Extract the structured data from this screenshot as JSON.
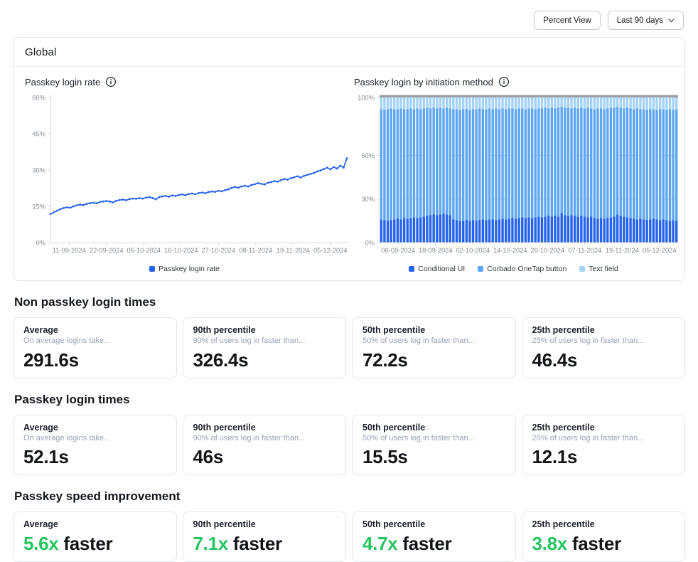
{
  "toolbar": {
    "percent_view_label": "Percent View",
    "range_label": "Last 90 days"
  },
  "icons": {
    "info_icon": "i-in-circle",
    "chevron_down_icon": "chevron-down"
  },
  "colors": {
    "primary_blue": "#2563eb",
    "medium_blue": "#5ea6f1",
    "light_blue": "#a6d3f8",
    "green": "#22c55e",
    "axis_text": "#82888f",
    "axis_line": "#d5d8dc",
    "grid_dash": "#c9cdd2",
    "top_band": "#9aa0a7"
  },
  "global_card": {
    "title": "Global",
    "chart_titles": [
      "Passkey login rate",
      "Passkey login by initiation method"
    ]
  },
  "chart_data": [
    {
      "type": "line",
      "title": "Passkey login rate",
      "ylabel": "",
      "xlabel": "",
      "ylim": [
        0,
        60
      ],
      "y_ticks": [
        "0%",
        "15%",
        "30%",
        "45%",
        "60%"
      ],
      "x_tick_labels": [
        "11-09-2024",
        "22-09-2024",
        "05-10-2024",
        "16-10-2024",
        "27-10-2024",
        "08-11-2024",
        "19-11-2024",
        "05-12-2024"
      ],
      "legend_position": "bottom",
      "series": [
        {
          "name": "Passkey login rate",
          "color_key": "primary_blue",
          "values": [
            11.8,
            12.5,
            13.2,
            13.8,
            14.3,
            14.6,
            14.4,
            15.0,
            15.4,
            15.7,
            15.5,
            16.0,
            16.3,
            16.5,
            16.2,
            16.8,
            17.0,
            17.2,
            17.0,
            16.6,
            17.3,
            17.6,
            17.8,
            17.5,
            18.0,
            18.2,
            18.1,
            18.4,
            18.2,
            18.6,
            18.8,
            18.4,
            17.9,
            18.8,
            19.1,
            19.3,
            19.0,
            19.5,
            19.3,
            19.7,
            19.9,
            19.6,
            20.1,
            20.3,
            20.0,
            20.5,
            20.7,
            20.4,
            20.9,
            21.1,
            21.0,
            21.4,
            21.2,
            21.7,
            22.0,
            22.6,
            23.0,
            22.7,
            23.2,
            23.5,
            23.2,
            23.8,
            24.1,
            24.6,
            24.3,
            24.0,
            24.7,
            25.0,
            25.4,
            25.2,
            25.8,
            26.3,
            26.0,
            26.6,
            27.0,
            27.4,
            26.9,
            27.6,
            28.0,
            28.4,
            28.8,
            29.4,
            29.8,
            30.4,
            31.0,
            30.3,
            31.2,
            30.6,
            31.8,
            31.0,
            34.8
          ]
        }
      ]
    },
    {
      "type": "bar",
      "subtype": "stacked_percent",
      "title": "Passkey login by initiation method",
      "ylabel": "",
      "xlabel": "",
      "ylim": [
        0,
        100
      ],
      "y_ticks": [
        "0%",
        "30%",
        "60%",
        "100%"
      ],
      "x_tick_labels": [
        "06-09-2024",
        "18-09-2024",
        "02-10-2024",
        "14-10-2024",
        "26-10-2024",
        "07-11-2024",
        "19-11-2024",
        "05-12-2024"
      ],
      "legend_position": "bottom",
      "series": [
        {
          "name": "Conditional UI",
          "color_key": "primary_blue",
          "values": [
            16,
            15.5,
            15,
            15.5,
            16,
            16.5,
            16,
            17,
            16.5,
            17,
            17.5,
            17,
            17.5,
            18,
            18.5,
            19,
            19.5,
            19,
            19.5,
            20,
            19.5,
            19,
            16,
            15.5,
            15,
            15,
            15.5,
            15,
            15.5,
            15,
            15.5,
            16,
            15.5,
            16,
            16,
            15.5,
            16,
            16.5,
            16,
            16.5,
            17,
            16.5,
            17,
            17.5,
            17,
            17.5,
            17,
            17.5,
            18,
            17.5,
            18,
            18.5,
            18,
            18.5,
            18,
            20.5,
            19,
            18.5,
            19,
            18.5,
            18,
            18.5,
            18,
            17.5,
            18,
            17,
            16.5,
            17,
            16.5,
            17,
            17.5,
            18,
            19.5,
            18.5,
            18,
            17.5,
            17,
            16.5,
            16,
            16.5,
            16,
            15.5,
            16,
            16.5,
            16,
            15.5,
            16,
            15.5,
            15,
            15.5,
            15
          ]
        },
        {
          "name": "Corbado OneTap button",
          "color_key": "medium_blue",
          "values": [
            76,
            76,
            77,
            77,
            76,
            75.5,
            76.5,
            75,
            75.5,
            75.5,
            74.5,
            75.5,
            74.5,
            74.5,
            74.5,
            73.5,
            73.5,
            73.5,
            73.5,
            72.5,
            73.5,
            73.5,
            76,
            76.5,
            76.5,
            77,
            76.5,
            76.5,
            76.5,
            77,
            77,
            76,
            76.5,
            76.5,
            76,
            77,
            76,
            76,
            76,
            76,
            75.5,
            75.5,
            75.5,
            75,
            75,
            75,
            75.5,
            74.5,
            74.5,
            75,
            75,
            74,
            75,
            74,
            75,
            73,
            74,
            74.5,
            73.5,
            74.5,
            74.5,
            74.5,
            74.5,
            75.5,
            74.5,
            75,
            76,
            75.5,
            75.5,
            75.5,
            75.5,
            75,
            74,
            74.5,
            74.5,
            75.5,
            75.5,
            75.5,
            76.5,
            75.5,
            76,
            76,
            76,
            75.5,
            75.5,
            76.5,
            76,
            76,
            77,
            76,
            77
          ]
        },
        {
          "name": "Text field",
          "color_key": "light_blue",
          "values": [
            8,
            8.5,
            8,
            7.5,
            8,
            8,
            7.5,
            8,
            8,
            7.5,
            8,
            7.5,
            8,
            7.5,
            7,
            7.5,
            7,
            7.5,
            7,
            7.5,
            7,
            7.5,
            8,
            8,
            8.5,
            8,
            8,
            8.5,
            8,
            8,
            7.5,
            8,
            8,
            7.5,
            8,
            7.5,
            8,
            7.5,
            8,
            7.5,
            7.5,
            8,
            7.5,
            7.5,
            8,
            7.5,
            7.5,
            8,
            7.5,
            7.5,
            7,
            7.5,
            7,
            7.5,
            7,
            6.5,
            7,
            7,
            7.5,
            7,
            7.5,
            7,
            7.5,
            7,
            7.5,
            8,
            7.5,
            7.5,
            8,
            7.5,
            7,
            7,
            6.5,
            7,
            7.5,
            7,
            7.5,
            8,
            7.5,
            8,
            8,
            8.5,
            8,
            8,
            8.5,
            8,
            8,
            8.5,
            8,
            8.5,
            8
          ]
        }
      ]
    }
  ],
  "sections": [
    {
      "heading": "Non passkey login times",
      "cards": [
        {
          "title": "Average",
          "subtitle": "On average logins take...",
          "value": "291.6s"
        },
        {
          "title": "90th percentile",
          "subtitle": "90% of users log in faster than...",
          "value": "326.4s"
        },
        {
          "title": "50th percentile",
          "subtitle": "50% of users log in faster than...",
          "value": "72.2s"
        },
        {
          "title": "25th percentile",
          "subtitle": "25% of users log in faster than...",
          "value": "46.4s"
        }
      ]
    },
    {
      "heading": "Passkey login times",
      "cards": [
        {
          "title": "Average",
          "subtitle": "On average logins take...",
          "value": "52.1s"
        },
        {
          "title": "90th percentile",
          "subtitle": "90% of users log in faster than...",
          "value": "46s"
        },
        {
          "title": "50th percentile",
          "subtitle": "50% of users log in faster than...",
          "value": "15.5s"
        },
        {
          "title": "25th percentile",
          "subtitle": "25% of users log in faster than...",
          "value": "12.1s"
        }
      ]
    },
    {
      "heading": "Passkey speed improvement",
      "cards": [
        {
          "title": "Average",
          "value_highlight": "5.6x",
          "value_suffix": " faster"
        },
        {
          "title": "90th percentile",
          "value_highlight": "7.1x",
          "value_suffix": " faster"
        },
        {
          "title": "50th percentile",
          "value_highlight": "4.7x",
          "value_suffix": " faster"
        },
        {
          "title": "25th percentile",
          "value_highlight": "3.8x",
          "value_suffix": " faster"
        }
      ]
    }
  ]
}
